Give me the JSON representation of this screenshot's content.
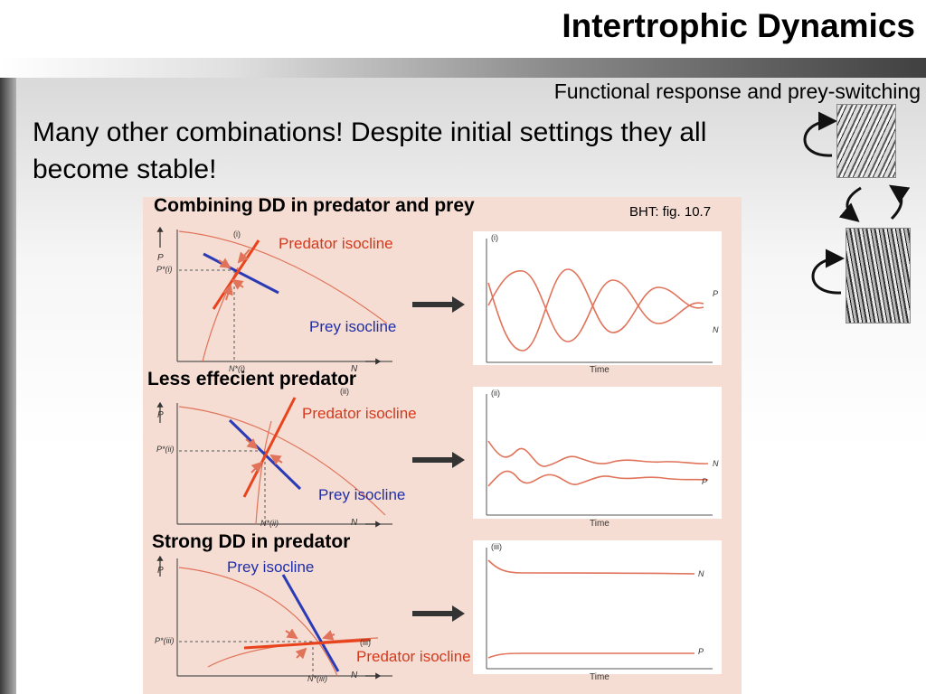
{
  "slide": {
    "title": "Intertrophic Dynamics",
    "subtitle": "Functional response and prey-switching",
    "heading": "Many other combinations! Despite initial settings they all become stable!"
  },
  "figure": {
    "source": "BHT: fig. 10.7",
    "panels": [
      {
        "heading": "Combining DD in predator and prey",
        "predator_label": "Predator isocline",
        "prey_label": "Prey isocline",
        "panel_tag": "(i)",
        "p_star": "P*(i)",
        "n_star": "N*(i)",
        "axis_p": "P",
        "axis_n": "N",
        "time_label": "Time",
        "series_top": "P",
        "series_bottom": "N"
      },
      {
        "heading": "Less effecient predator",
        "predator_label": "Predator isocline",
        "prey_label": "Prey isocline",
        "panel_tag": "(ii)",
        "p_star": "P*(ii)",
        "n_star": "N*(ii)",
        "axis_p": "P",
        "axis_n": "N",
        "time_label": "Time",
        "series_top": "N",
        "series_bottom": "P"
      },
      {
        "heading": "Strong DD in predator",
        "predator_label": "Predator isocline",
        "prey_label": "Prey isocline",
        "panel_tag": "(iii)",
        "p_star": "P*(iii)",
        "n_star": "N*(iii)",
        "axis_p": "P",
        "axis_n": "N",
        "time_label": "Time",
        "series_top": "N",
        "series_bottom": "P"
      }
    ]
  },
  "colors": {
    "predator": "#e8431d",
    "prey": "#2a3bb5",
    "curve": "#e0735a",
    "arrow": "#e0735a",
    "figure_bg": "#f6ddd3"
  },
  "icons": [
    "cycle-arrow-icon",
    "tiger-photo",
    "double-arrow-icon",
    "deer-photo"
  ]
}
